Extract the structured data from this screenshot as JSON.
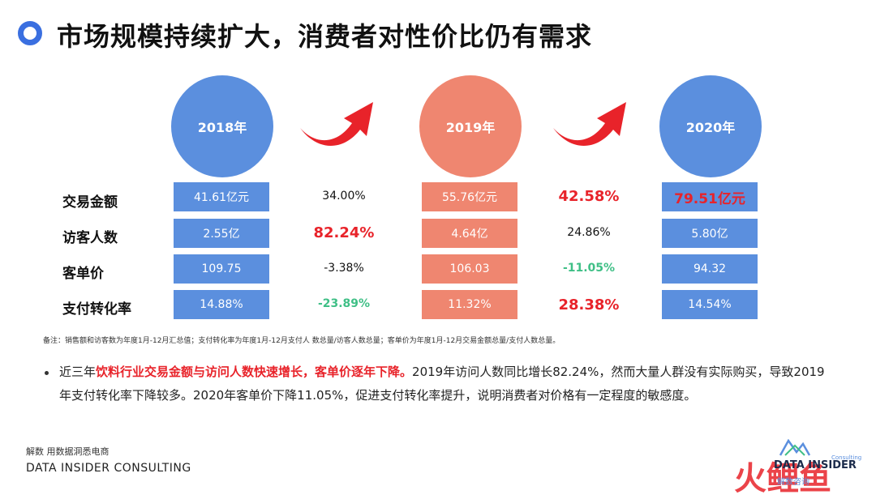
{
  "title": "市场规模持续扩大，消费者对性价比仍有需求",
  "years": [
    "2018年",
    "2019年",
    "2020年"
  ],
  "row_labels": [
    "交易金额",
    "访客人数",
    "客单价",
    "支付转化率"
  ],
  "values_2018": [
    "41.61亿元",
    "2.55亿",
    "109.75",
    "14.88%"
  ],
  "growth_18_19": [
    "34.00%",
    "82.24%",
    "-3.38%",
    "-23.89%"
  ],
  "values_2019": [
    "55.76亿元",
    "4.64亿",
    "106.03",
    "11.32%"
  ],
  "growth_19_20": [
    "42.58%",
    "24.86%",
    "-11.05%",
    "28.38%"
  ],
  "values_2020": [
    "79.51亿元",
    "5.80亿",
    "94.32",
    "14.54%"
  ],
  "note": "备注：销售额和访客数为年度1月-12月汇总值；支付转化率为年度1月-12月支付人 数总量/访客人数总量；客单价为年度1月-12月交易金额总量/支付人数总量。",
  "paragraph": {
    "lead": "近三年",
    "highlight": "饮料行业交易金额与访问人数快速增长，客单价逐年下降。",
    "rest": "2019年访问人数同比增长82.24%，然而大量人群没有实际购买，导致2019年支付转化率下降较多。2020年客单价下降11.05%，促进支付转化率提升，说明消费者对价格有一定程度的敏感度。"
  },
  "footer": {
    "cn": "解数 用数据洞悉电商",
    "en": "DATA INSIDER CONSULTING"
  },
  "logo": {
    "name": "DATA INSIDER",
    "sub": "Consulting",
    "cn": "解数咨询"
  },
  "watermark": "火鲤鱼",
  "colors": {
    "blue": "#5b8fde",
    "salmon": "#ef8670",
    "red": "#e8232a",
    "green": "#3fbf86"
  }
}
